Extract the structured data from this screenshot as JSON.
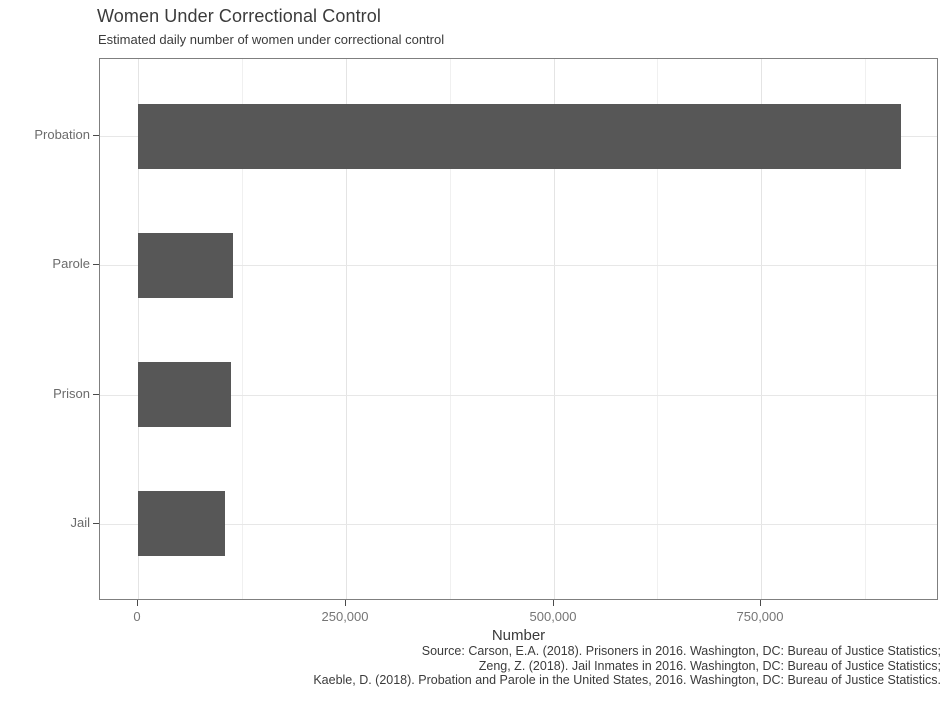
{
  "chart_data": {
    "type": "bar",
    "orientation": "horizontal",
    "title": "Women Under Correctional Control",
    "subtitle": "Estimated daily number of women under correctional control",
    "xlabel": "Number",
    "categories": [
      "Probation",
      "Parole",
      "Prison",
      "Jail"
    ],
    "values": [
      918000,
      114000,
      112000,
      104000
    ],
    "bar_color": "#575757",
    "x_ticks": [
      {
        "value": 0,
        "label": "0"
      },
      {
        "value": 250000,
        "label": "250,000"
      },
      {
        "value": 500000,
        "label": "500,000"
      },
      {
        "value": 750000,
        "label": "750,000"
      }
    ],
    "x_minor_ticks": [
      125000,
      375000,
      625000,
      875000
    ],
    "xlim": [
      -45900,
      963900
    ],
    "grid": "on",
    "legend": "none",
    "caption_lines": [
      "Source: Carson, E.A. (2018). Prisoners in 2016. Washington, DC: Bureau of Justice Statistics;",
      "Zeng, Z. (2018). Jail Inmates in 2016. Washington, DC: Bureau of Justice Statistics;",
      "Kaeble, D. (2018). Probation and Parole in the United States, 2016. Washington, DC: Bureau of Justice Statistics."
    ]
  }
}
